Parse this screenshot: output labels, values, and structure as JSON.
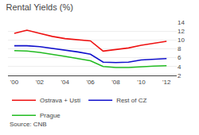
{
  "chart_data": {
    "type": "line",
    "title": "Rental Yields (%)",
    "x": [
      2000,
      2001,
      2002,
      2003,
      2004,
      2005,
      2006,
      2007,
      2008,
      2009,
      2010,
      2011,
      2012
    ],
    "series": [
      {
        "name": "Ostrava + Usti",
        "color": "#ee1111",
        "values": [
          11.5,
          12.2,
          11.5,
          10.8,
          10.3,
          10.0,
          9.8,
          7.5,
          7.8,
          8.2,
          8.8,
          9.2,
          9.7
        ]
      },
      {
        "name": "Rest of CZ",
        "color": "#1111cc",
        "values": [
          8.7,
          8.7,
          8.5,
          8.1,
          7.8,
          7.3,
          6.8,
          5.0,
          4.9,
          5.0,
          5.5,
          5.7,
          5.8
        ]
      },
      {
        "name": "Prague",
        "color": "#22bb22",
        "values": [
          7.6,
          7.5,
          7.2,
          6.8,
          6.3,
          5.8,
          5.3,
          4.0,
          3.8,
          3.8,
          4.0,
          4.1,
          4.2
        ]
      }
    ],
    "xlim": [
      1999.5,
      2012.8
    ],
    "xticks": [
      {
        "value": 2000,
        "label": "'00"
      },
      {
        "value": 2002,
        "label": "'02"
      },
      {
        "value": 2004,
        "label": "'04"
      },
      {
        "value": 2006,
        "label": "'06"
      },
      {
        "value": 2008,
        "label": "'08"
      },
      {
        "value": 2010,
        "label": "'10"
      },
      {
        "value": 2012,
        "label": "'12"
      }
    ],
    "ylim": [
      2,
      14
    ],
    "yticks": [
      2,
      4,
      6,
      8,
      10,
      12,
      14
    ],
    "grid": true,
    "legend": "bottom",
    "annotations": [
      "Source: CNB"
    ]
  }
}
